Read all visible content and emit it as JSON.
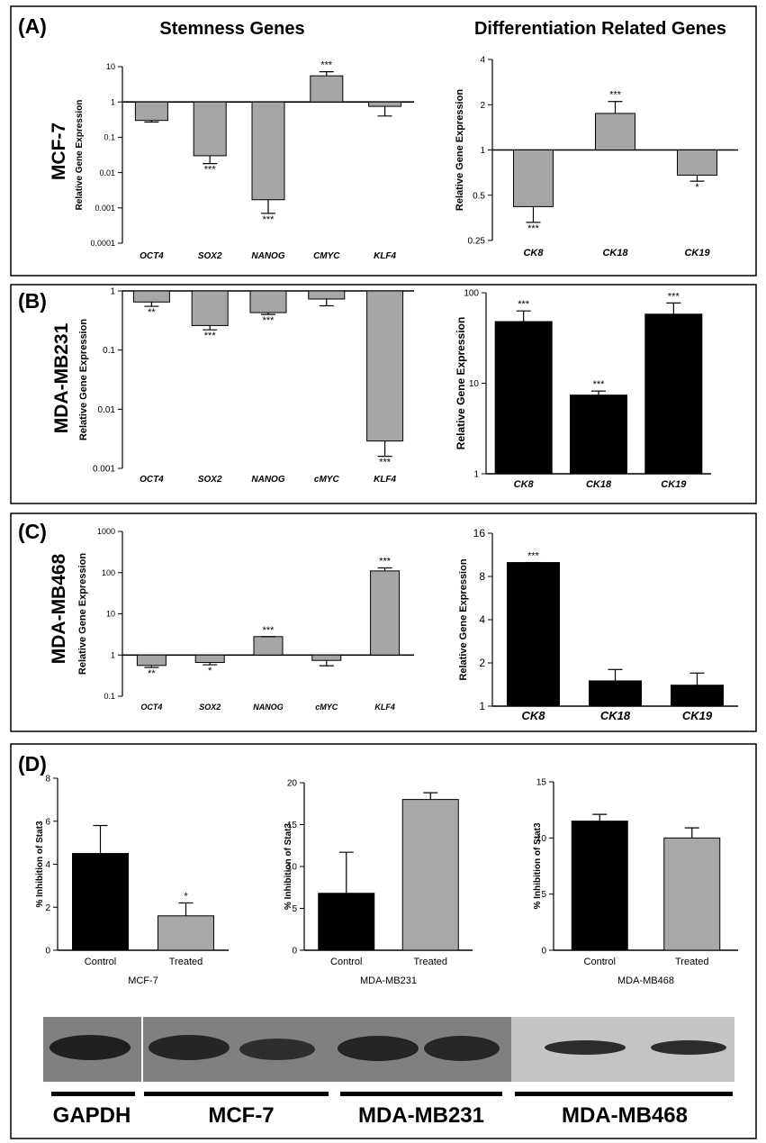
{
  "headings": {
    "stemness": "Stemness Genes",
    "differentiation": "Differentiation Related Genes"
  },
  "panels": [
    {
      "label": "(A)",
      "cell_line": "MCF-7"
    },
    {
      "label": "(B)",
      "cell_line": "MDA-MB231"
    },
    {
      "label": "(C)",
      "cell_line": "MDA-MB468"
    },
    {
      "label": "(D)"
    }
  ],
  "blot": {
    "labels": [
      "GAPDH",
      "MCF-7",
      "MDA-MB231",
      "MDA-MB468"
    ]
  },
  "colors": {
    "gray_bar": "#a6a6a6",
    "black_bar": "#000000",
    "treated_bar": "#a8a8a8"
  },
  "chart_data": [
    {
      "id": "A-stem",
      "type": "bar",
      "scale": "log10",
      "baseline": 1,
      "ylabel": "Relative Gene Expression",
      "ticks": [
        "0.0001",
        "0.001",
        "0.01",
        "0.1",
        "1",
        "10"
      ],
      "ylim": [
        0.0001,
        10
      ],
      "categories": [
        "OCT4",
        "SOX2",
        "NANOG",
        "CMYC",
        "KLF4"
      ],
      "values": [
        0.3,
        0.03,
        0.0017,
        5.5,
        0.75
      ],
      "errors": [
        0.27,
        0.018,
        0.0007,
        7.2,
        0.4
      ],
      "significance": [
        "",
        "***",
        "***",
        "***",
        ""
      ]
    },
    {
      "id": "A-diff",
      "type": "bar",
      "scale": "log2",
      "baseline": 1,
      "ylabel": "Relative Gene Expression",
      "ticks": [
        "0.25",
        "0.5",
        "1",
        "2",
        "4"
      ],
      "ylim": [
        0.25,
        4
      ],
      "categories": [
        "CK8",
        "CK18",
        "CK19"
      ],
      "values": [
        0.42,
        1.75,
        0.68
      ],
      "errors": [
        0.33,
        2.1,
        0.62
      ],
      "significance": [
        "***",
        "***",
        "*"
      ]
    },
    {
      "id": "B-stem",
      "type": "bar",
      "scale": "log10",
      "baseline": 1,
      "ylabel": "Relative Gene Expression",
      "ticks": [
        "0.001",
        "0.01",
        "0.1",
        "1"
      ],
      "ylim": [
        0.001,
        1
      ],
      "categories": [
        "OCT4",
        "SOX2",
        "NANOG",
        "cMYC",
        "KLF4"
      ],
      "values": [
        0.65,
        0.26,
        0.43,
        0.73,
        0.0029
      ],
      "errors": [
        0.55,
        0.22,
        0.4,
        0.56,
        0.0016
      ],
      "significance": [
        "**",
        "***",
        "***",
        "",
        "***"
      ]
    },
    {
      "id": "B-diff",
      "type": "bar",
      "scale": "log10",
      "baseline": 1,
      "ylabel": "Relative Gene Expression",
      "ticks": [
        "1",
        "10",
        "100"
      ],
      "ylim": [
        1,
        100
      ],
      "categories": [
        "CK8",
        "CK18",
        "CK19"
      ],
      "values": [
        48,
        7.4,
        58
      ],
      "errors": [
        63,
        8.2,
        77
      ],
      "significance": [
        "***",
        "***",
        "***"
      ]
    },
    {
      "id": "C-stem",
      "type": "bar",
      "scale": "log10",
      "baseline": 1,
      "ylabel": "Relative Gene Expression",
      "ticks": [
        "0.1",
        "1",
        "10",
        "100",
        "1000"
      ],
      "ylim": [
        0.1,
        1000
      ],
      "categories": [
        "OCT4",
        "SOX2",
        "NANOG",
        "cMYC",
        "KLF4"
      ],
      "values": [
        0.56,
        0.66,
        2.8,
        0.74,
        110
      ],
      "errors": [
        0.5,
        0.58,
        2.8,
        0.55,
        130
      ],
      "significance": [
        "**",
        "*",
        "***",
        "",
        "***"
      ]
    },
    {
      "id": "C-diff",
      "type": "bar",
      "scale": "log2",
      "baseline": 1,
      "ylabel": "Relative Gene Expression",
      "ticks": [
        "1",
        "2",
        "4",
        "8",
        "16"
      ],
      "ylim": [
        1,
        16
      ],
      "categories": [
        "CK8",
        "CK18",
        "CK19"
      ],
      "values": [
        10,
        1.5,
        1.4
      ],
      "errors": [
        10,
        1.8,
        1.7
      ],
      "significance": [
        "***",
        "",
        ""
      ]
    },
    {
      "id": "D-mcf7",
      "type": "bar",
      "scale": "linear",
      "baseline": 0,
      "title": "MCF-7",
      "ylabel": "% Inhibition of Stat3",
      "ticks": [
        "0",
        "2",
        "4",
        "6",
        "8"
      ],
      "ylim": [
        0,
        8
      ],
      "categories": [
        "Control",
        "Treated"
      ],
      "values": [
        4.5,
        1.6
      ],
      "errors": [
        5.8,
        2.2
      ],
      "significance": [
        "",
        "*"
      ]
    },
    {
      "id": "D-mda231",
      "type": "bar",
      "scale": "linear",
      "baseline": 0,
      "title": "MDA-MB231",
      "ylabel": "% Inhibition of Stat3",
      "ticks": [
        "0",
        "5",
        "10",
        "15",
        "20"
      ],
      "ylim": [
        0,
        20
      ],
      "categories": [
        "Control",
        "Treated"
      ],
      "values": [
        6.8,
        18
      ],
      "errors": [
        11.7,
        18.8
      ],
      "significance": [
        "",
        ""
      ]
    },
    {
      "id": "D-mda468",
      "type": "bar",
      "scale": "linear",
      "baseline": 0,
      "title": "MDA-MB468",
      "ylabel": "% Inhibition of Stat3",
      "ticks": [
        "0",
        "5",
        "10",
        "15"
      ],
      "ylim": [
        0,
        15
      ],
      "categories": [
        "Control",
        "Treated"
      ],
      "values": [
        11.5,
        10
      ],
      "errors": [
        12.1,
        10.9
      ],
      "significance": [
        "",
        ""
      ]
    }
  ]
}
